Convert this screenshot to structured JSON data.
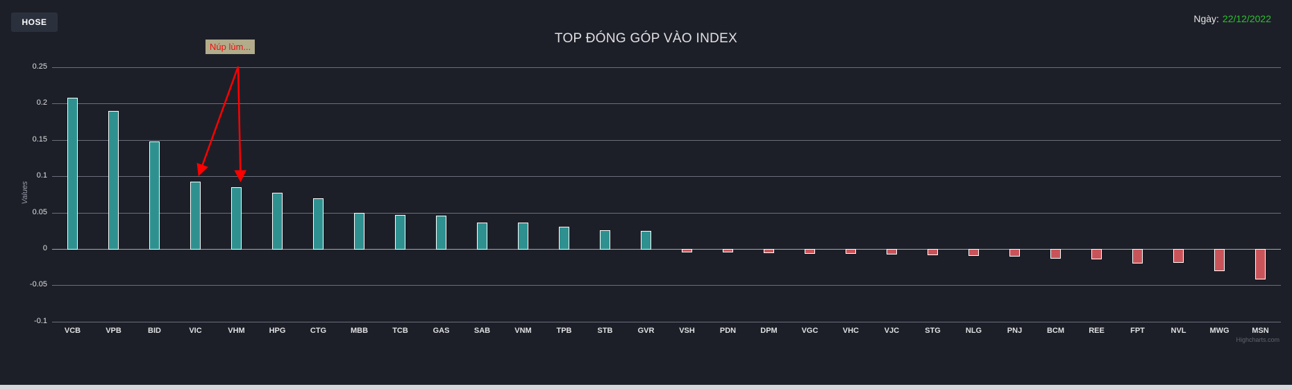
{
  "header": {
    "exchange_button": "HOSE",
    "date_label": "Ngày:",
    "date_value": "22/12/2022",
    "date_color": "#28c32d"
  },
  "chart_data": {
    "type": "bar",
    "title": "TOP ĐÓNG GÓP VÀO INDEX",
    "xlabel": "",
    "ylabel": "Values",
    "ylim": [
      -0.1,
      0.25
    ],
    "yticks": [
      0.25,
      0.2,
      0.15,
      0.1,
      0.05,
      0,
      -0.05,
      -0.1
    ],
    "ytick_labels": [
      "0.25",
      "0.2",
      "0.15",
      "0.1",
      "0.05",
      "0",
      "-0.05",
      "-0.1"
    ],
    "grid": true,
    "legend": "none",
    "categories": [
      "VCB",
      "VPB",
      "BID",
      "VIC",
      "VHM",
      "HPG",
      "CTG",
      "MBB",
      "TCB",
      "GAS",
      "SAB",
      "VNM",
      "TPB",
      "STB",
      "GVR",
      "VSH",
      "PDN",
      "DPM",
      "VGC",
      "VHC",
      "VJC",
      "STG",
      "NLG",
      "PNJ",
      "BCM",
      "REE",
      "FPT",
      "NVL",
      "MWG",
      "MSN"
    ],
    "values": [
      0.208,
      0.19,
      0.148,
      0.093,
      0.085,
      0.077,
      0.07,
      0.05,
      0.047,
      0.046,
      0.036,
      0.036,
      0.031,
      0.026,
      0.025,
      -0.004,
      -0.004,
      -0.005,
      -0.006,
      -0.006,
      -0.007,
      -0.008,
      -0.009,
      -0.01,
      -0.012,
      -0.013,
      -0.019,
      -0.018,
      -0.03,
      -0.041
    ],
    "positive_color": "#2e9190",
    "negative_color": "#c8545a",
    "bar_border_color": "#ffffff",
    "annotation": {
      "text": "Núp lùm...",
      "targets": [
        "VIC",
        "VHM"
      ],
      "box_color": "#b2ac8b",
      "text_color": "#ef0e0e",
      "arrow_color": "#ff0000"
    },
    "credit": "Highcharts.com"
  }
}
